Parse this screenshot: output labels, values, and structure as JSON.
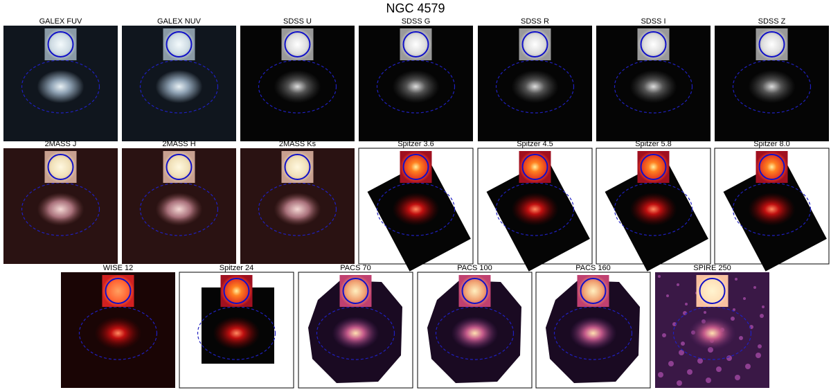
{
  "title": "NGC 4579",
  "panels": [
    {
      "label": "GALEX FUV"
    },
    {
      "label": "GALEX NUV"
    },
    {
      "label": "SDSS U"
    },
    {
      "label": "SDSS G"
    },
    {
      "label": "SDSS R"
    },
    {
      "label": "SDSS I"
    },
    {
      "label": "SDSS Z"
    },
    {
      "label": "2MASS J"
    },
    {
      "label": "2MASS H"
    },
    {
      "label": "2MASS Ks"
    },
    {
      "label": "Spitzer 3.6"
    },
    {
      "label": "Spitzer 4.5"
    },
    {
      "label": "Spitzer 5.8"
    },
    {
      "label": "Spitzer 8.0"
    },
    {
      "label": "WISE 12"
    },
    {
      "label": "Spitzer 24"
    },
    {
      "label": "PACS 70"
    },
    {
      "label": "PACS 100"
    },
    {
      "label": "PACS 160"
    },
    {
      "label": "SPIRE 250"
    }
  ]
}
